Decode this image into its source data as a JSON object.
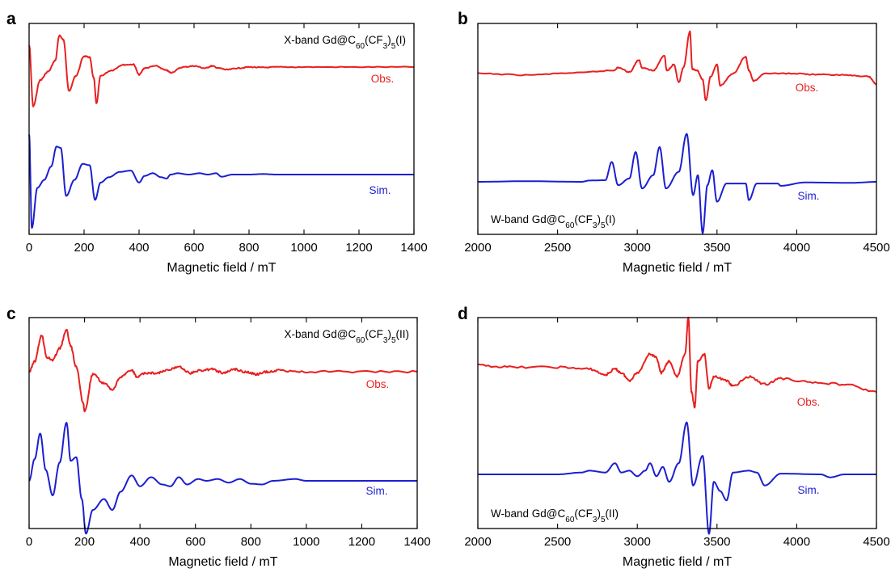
{
  "panels": [
    {
      "letter": "a",
      "band": "X-band",
      "compound": "Gd@C",
      "sub1": "60",
      "mid": "(CF",
      "sub2": "3",
      "close": ")",
      "sub3": "5",
      "suffix": "(I)",
      "label_corner": "top-right",
      "xlabel": "Magnetic field / mT",
      "xlim": [
        0,
        1400
      ],
      "xticks": [
        0,
        200,
        400,
        600,
        800,
        1000,
        1200,
        1400
      ]
    },
    {
      "letter": "b",
      "band": "W-band",
      "compound": "Gd@C",
      "sub1": "60",
      "mid": "(CF",
      "sub2": "3",
      "close": ")",
      "sub3": "5",
      "suffix": "(I)",
      "label_corner": "bottom-left",
      "xlabel": "Magnetic field / mT",
      "xlim": [
        2000,
        4500
      ],
      "xticks": [
        2000,
        2500,
        3000,
        3500,
        4000,
        4500
      ]
    },
    {
      "letter": "c",
      "band": "X-band",
      "compound": "Gd@C",
      "sub1": "60",
      "mid": "(CF",
      "sub2": "3",
      "close": ")",
      "sub3": "5",
      "suffix": "(II)",
      "label_corner": "top-right",
      "xlabel": "Magnetic field / mT",
      "xlim": [
        0,
        1400
      ],
      "xticks": [
        0,
        200,
        400,
        600,
        800,
        1000,
        1200,
        1400
      ]
    },
    {
      "letter": "d",
      "band": "W-band",
      "compound": "Gd@C",
      "sub1": "60",
      "mid": "(CF",
      "sub2": "3",
      "close": ")",
      "sub3": "5",
      "suffix": "(II)",
      "label_corner": "bottom-left",
      "xlabel": "Magnetic field / mT",
      "xlim": [
        2000,
        4500
      ],
      "xticks": [
        2000,
        2500,
        3000,
        3500,
        4000,
        4500
      ]
    }
  ],
  "legend": {
    "obs": "Obs.",
    "sim": "Sim."
  },
  "colors": {
    "obs": "#e8201f",
    "sim": "#1c1fd0",
    "axis": "#000000"
  },
  "chart_data": [
    {
      "type": "line",
      "xlabel": "Magnetic field / mT",
      "xlim": [
        0,
        1400
      ],
      "y_axis": "arbitrary units, no ticks",
      "series": [
        {
          "name": "Obs.",
          "x": [
            0,
            15,
            40,
            70,
            95,
            110,
            125,
            145,
            170,
            200,
            220,
            235,
            245,
            260,
            300,
            340,
            380,
            400,
            420,
            460,
            500,
            515,
            560,
            600,
            640,
            665,
            690,
            720,
            760,
            800,
            850,
            900,
            1000,
            1200,
            1400
          ],
          "y": [
            1.0,
            -1.8,
            -0.6,
            -0.2,
            0.3,
            1.45,
            1.25,
            -1.1,
            -0.4,
            0.5,
            0.45,
            -0.5,
            -1.65,
            -0.4,
            -0.15,
            0.1,
            0.12,
            -0.35,
            -0.05,
            0.05,
            -0.15,
            -0.25,
            0.0,
            0.05,
            -0.05,
            0.05,
            -0.05,
            -0.12,
            -0.05,
            0.0,
            -0.02,
            0.0,
            0.0,
            0.0,
            0.0
          ]
        },
        {
          "name": "Sim.",
          "x": [
            0,
            10,
            30,
            55,
            80,
            100,
            115,
            135,
            165,
            195,
            220,
            240,
            260,
            290,
            330,
            370,
            400,
            420,
            450,
            480,
            500,
            515,
            540,
            580,
            620,
            650,
            680,
            700,
            740,
            800,
            850,
            900,
            1000,
            1200,
            1400
          ],
          "y": [
            1.5,
            -2.0,
            -0.5,
            -0.2,
            0.3,
            1.05,
            1.0,
            -0.8,
            -0.2,
            0.4,
            0.35,
            -0.95,
            -0.3,
            -0.1,
            0.1,
            0.15,
            -0.3,
            -0.05,
            0.05,
            -0.1,
            -0.15,
            0.0,
            0.05,
            0.0,
            0.05,
            0.0,
            0.05,
            -0.08,
            0.0,
            0.0,
            0.02,
            0.0,
            0.0,
            0.0,
            0.0
          ]
        }
      ]
    },
    {
      "type": "line",
      "xlabel": "Magnetic field / mT",
      "xlim": [
        2000,
        4500
      ],
      "y_axis": "arbitrary units, no ticks",
      "series": [
        {
          "name": "Obs.",
          "x": [
            2000,
            2300,
            2600,
            2850,
            2880,
            2950,
            3010,
            3030,
            3100,
            3170,
            3185,
            3230,
            3260,
            3290,
            3330,
            3345,
            3375,
            3410,
            3430,
            3460,
            3500,
            3520,
            3600,
            3680,
            3700,
            3730,
            3800,
            4000,
            4100,
            4300,
            4450,
            4500
          ],
          "y": [
            0.0,
            -0.05,
            0.02,
            0.1,
            0.2,
            0.05,
            0.45,
            0.2,
            0.1,
            0.6,
            0.1,
            0.3,
            -0.3,
            0.2,
            1.4,
            0.15,
            0.1,
            -0.2,
            -0.9,
            -0.1,
            0.3,
            -0.4,
            0.0,
            0.55,
            0.1,
            -0.25,
            0.0,
            0.0,
            -0.03,
            -0.05,
            -0.1,
            -0.35
          ]
        },
        {
          "name": "Sim.",
          "x": [
            2000,
            2300,
            2650,
            2700,
            2800,
            2840,
            2880,
            2950,
            2990,
            3030,
            3100,
            3140,
            3180,
            3260,
            3310,
            3350,
            3380,
            3410,
            3440,
            3470,
            3500,
            3560,
            3680,
            3700,
            3750,
            3880,
            3900,
            4050,
            4350,
            4500
          ],
          "y": [
            0.0,
            0.02,
            0.0,
            0.04,
            0.05,
            0.6,
            -0.1,
            0.1,
            0.9,
            -0.2,
            0.2,
            1.05,
            -0.2,
            0.3,
            1.45,
            -0.4,
            0.2,
            -1.55,
            -0.1,
            0.35,
            -0.6,
            -0.05,
            -0.05,
            -0.55,
            -0.05,
            -0.05,
            -0.12,
            -0.02,
            -0.03,
            0.0
          ]
        }
      ]
    },
    {
      "type": "line",
      "xlabel": "Magnetic field / mT",
      "xlim": [
        0,
        1400
      ],
      "y_axis": "arbitrary units, no ticks",
      "series": [
        {
          "name": "Obs.",
          "x": [
            0,
            20,
            45,
            65,
            85,
            110,
            135,
            150,
            170,
            195,
            200,
            230,
            270,
            300,
            330,
            370,
            390,
            420,
            460,
            500,
            540,
            580,
            620,
            660,
            700,
            740,
            780,
            820,
            860,
            900,
            1000,
            1200,
            1400
          ],
          "y": [
            0.0,
            0.4,
            1.4,
            0.55,
            0.45,
            0.9,
            1.6,
            1.0,
            0.2,
            -1.2,
            -1.55,
            -0.1,
            -0.45,
            -0.7,
            -0.2,
            0.05,
            -0.2,
            -0.05,
            -0.05,
            0.05,
            0.2,
            -0.05,
            0.05,
            0.1,
            -0.05,
            0.1,
            0.0,
            -0.1,
            0.0,
            0.05,
            0.0,
            0.0,
            0.0
          ]
        },
        {
          "name": "Sim.",
          "x": [
            0,
            20,
            40,
            60,
            85,
            110,
            135,
            150,
            170,
            190,
            205,
            230,
            270,
            300,
            330,
            370,
            400,
            440,
            480,
            510,
            540,
            570,
            610,
            640,
            680,
            720,
            760,
            800,
            840,
            880,
            960,
            1000,
            1200,
            1400
          ],
          "y": [
            0.0,
            0.6,
            1.3,
            0.3,
            -0.4,
            0.5,
            1.6,
            0.55,
            0.65,
            -0.5,
            -1.45,
            -0.8,
            -0.5,
            -0.8,
            -0.3,
            0.15,
            -0.15,
            0.1,
            -0.1,
            -0.15,
            0.1,
            -0.1,
            0.05,
            0.0,
            0.05,
            -0.05,
            0.05,
            -0.08,
            -0.1,
            0.0,
            0.05,
            0.0,
            0.0,
            0.0
          ]
        }
      ]
    },
    {
      "type": "line",
      "xlabel": "Magnetic field / mT",
      "xlim": [
        2000,
        4500
      ],
      "y_axis": "arbitrary units, no ticks",
      "series": [
        {
          "name": "Obs.",
          "x": [
            2000,
            2200,
            2500,
            2700,
            2800,
            2860,
            2900,
            2950,
            3000,
            3080,
            3120,
            3150,
            3200,
            3250,
            3300,
            3320,
            3340,
            3360,
            3380,
            3420,
            3450,
            3480,
            3560,
            3600,
            3700,
            3800,
            3900,
            4100,
            4300,
            4500
          ],
          "y": [
            0.0,
            -0.05,
            -0.05,
            -0.1,
            -0.25,
            -0.1,
            -0.2,
            -0.4,
            -0.2,
            0.3,
            0.2,
            -0.2,
            0.1,
            -0.3,
            0.3,
            1.25,
            -0.7,
            -1.1,
            0.1,
            0.3,
            -0.6,
            -0.3,
            -0.4,
            -0.55,
            -0.3,
            -0.5,
            -0.35,
            -0.45,
            -0.5,
            -0.7
          ]
        },
        {
          "name": "Sim.",
          "x": [
            2000,
            2500,
            2650,
            2700,
            2800,
            2860,
            2900,
            2950,
            3000,
            3050,
            3080,
            3120,
            3160,
            3200,
            3260,
            3310,
            3350,
            3410,
            3450,
            3480,
            3520,
            3560,
            3600,
            3700,
            3750,
            3800,
            3900,
            4150,
            4210,
            4300,
            4500
          ],
          "y": [
            0.0,
            0.0,
            0.05,
            0.1,
            0.05,
            0.3,
            0.05,
            0.1,
            -0.05,
            0.1,
            0.3,
            -0.05,
            0.2,
            -0.2,
            0.3,
            1.4,
            -0.3,
            0.5,
            -1.6,
            -0.2,
            -0.45,
            -0.7,
            0.05,
            0.1,
            0.05,
            -0.3,
            0.02,
            0.0,
            -0.08,
            0.0,
            0.0
          ]
        }
      ]
    }
  ]
}
